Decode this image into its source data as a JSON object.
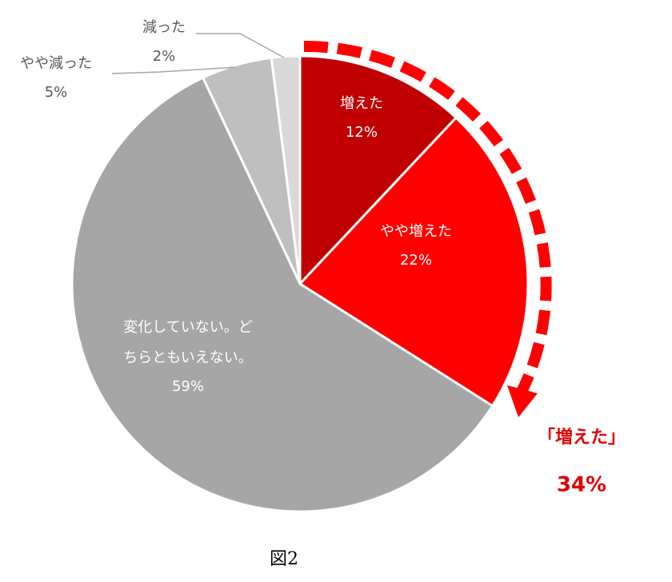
{
  "chart_data": {
    "type": "pie",
    "categories": [
      "増えた",
      "やや増えた",
      "変化していない。どちらともいえない。",
      "やや減った",
      "減った"
    ],
    "values": [
      12,
      22,
      59,
      5,
      2
    ],
    "value_labels": [
      "12%",
      "22%",
      "59%",
      "5%",
      "2%"
    ],
    "colors": [
      "#c00000",
      "#ff0000",
      "#a6a6a6",
      "#bfbfbf",
      "#d9d9d9"
    ],
    "annotations": [
      {
        "text": "「増えた」",
        "value_label": "34%"
      }
    ],
    "caption": "図2"
  }
}
